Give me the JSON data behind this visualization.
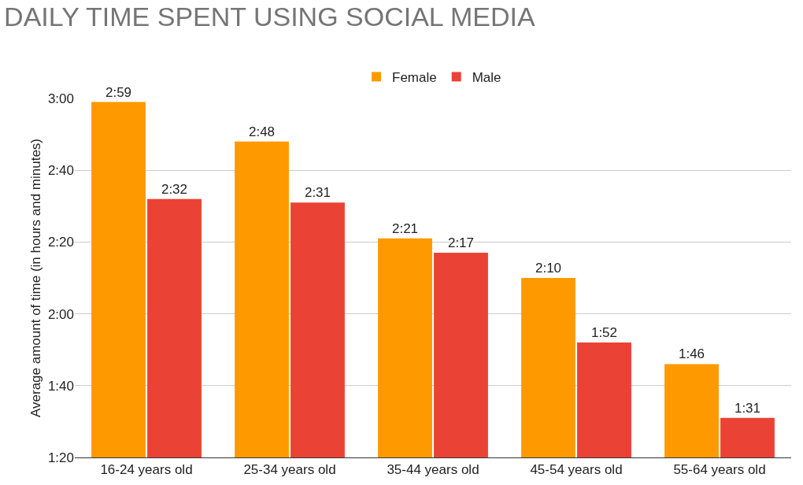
{
  "chart_data": {
    "type": "bar",
    "title": "DAILY TIME SPENT USING SOCIAL MEDIA",
    "ylabel": "Average amount of time (in hours and minutes)",
    "categories": [
      "16-24 years old",
      "25-34 years old",
      "35-44 years old",
      "45-54 years old",
      "55-64 years old"
    ],
    "series": [
      {
        "name": "Female",
        "color": "#ff9900",
        "values": [
          179,
          168,
          141,
          130,
          106
        ],
        "value_labels": [
          "2:59",
          "2:48",
          "2:21",
          "2:10",
          "1:46"
        ]
      },
      {
        "name": "Male",
        "color": "#ea4335",
        "values": [
          152,
          151,
          137,
          112,
          91
        ],
        "value_labels": [
          "2:32",
          "2:31",
          "2:17",
          "1:52",
          "1:31"
        ]
      }
    ],
    "ylim": [
      80,
      180
    ],
    "yticks": [
      {
        "value": 80,
        "label": "1:20"
      },
      {
        "value": 100,
        "label": "1:40"
      },
      {
        "value": 120,
        "label": "2:00"
      },
      {
        "value": 140,
        "label": "2:20"
      },
      {
        "value": 160,
        "label": "2:40"
      },
      {
        "value": 180,
        "label": "3:00"
      }
    ],
    "grid": "y",
    "legend": "top"
  }
}
